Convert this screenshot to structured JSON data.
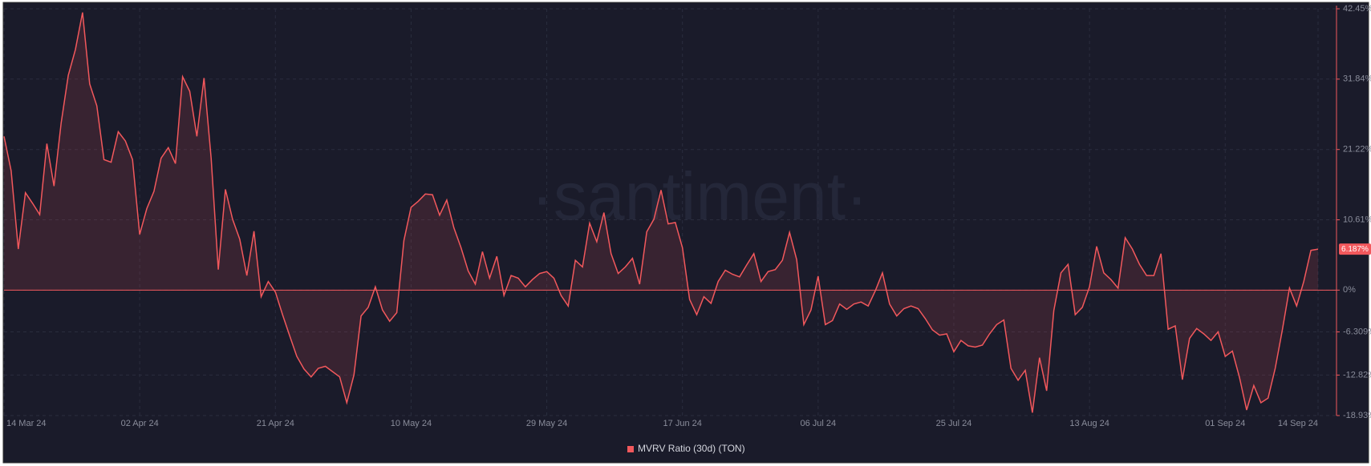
{
  "chart_data": {
    "type": "line",
    "watermark": "·santiment·",
    "categories": [
      "14 Mar 24",
      null,
      null,
      null,
      null,
      null,
      null,
      null,
      null,
      null,
      null,
      null,
      null,
      null,
      null,
      null,
      null,
      null,
      null,
      "02 Apr 24",
      null,
      null,
      null,
      null,
      null,
      null,
      null,
      null,
      null,
      null,
      null,
      null,
      null,
      null,
      null,
      null,
      null,
      null,
      "21 Apr 24",
      null,
      null,
      null,
      null,
      null,
      null,
      null,
      null,
      null,
      null,
      null,
      null,
      null,
      null,
      null,
      null,
      null,
      null,
      "10 May 24",
      null,
      null,
      null,
      null,
      null,
      null,
      null,
      null,
      null,
      null,
      null,
      null,
      null,
      null,
      null,
      null,
      null,
      null,
      "29 May 24",
      null,
      null,
      null,
      null,
      null,
      null,
      null,
      null,
      null,
      null,
      null,
      null,
      null,
      null,
      null,
      null,
      null,
      null,
      "17 Jun 24",
      null,
      null,
      null,
      null,
      null,
      null,
      null,
      null,
      null,
      null,
      null,
      null,
      null,
      null,
      null,
      null,
      null,
      null,
      "06 Jul 24",
      null,
      null,
      null,
      null,
      null,
      null,
      null,
      null,
      null,
      null,
      null,
      null,
      null,
      null,
      null,
      null,
      null,
      null,
      "25 Jul 24",
      null,
      null,
      null,
      null,
      null,
      null,
      null,
      null,
      null,
      null,
      null,
      null,
      null,
      null,
      null,
      null,
      null,
      null,
      "13 Aug 24",
      null,
      null,
      null,
      null,
      null,
      null,
      null,
      null,
      null,
      null,
      null,
      null,
      null,
      null,
      null,
      null,
      null,
      null,
      "01 Sep 24",
      null,
      null,
      null,
      null,
      null,
      null,
      null,
      null,
      null,
      null,
      null,
      null,
      "14 Sep 24"
    ],
    "series": [
      {
        "name": "MVRV Ratio (30d) (TON)",
        "color": "#f2585c",
        "last_value_label": "6.187%",
        "values": [
          23.2,
          18.0,
          6.2,
          14.7,
          13.1,
          11.4,
          22.1,
          15.7,
          25.2,
          32.4,
          36.3,
          41.9,
          31.1,
          27.8,
          19.7,
          19.3,
          23.9,
          22.5,
          19.7,
          8.4,
          12.3,
          14.9,
          19.9,
          21.5,
          19.1,
          32.2,
          30.0,
          23.2,
          32.0,
          19.9,
          3.1,
          15.2,
          10.7,
          7.7,
          2.2,
          8.9,
          -1.0,
          1.3,
          -0.3,
          -3.7,
          -6.9,
          -10.0,
          -11.9,
          -13.1,
          -11.8,
          -11.5,
          -12.3,
          -13.1,
          -17.0,
          -12.8,
          -3.9,
          -2.6,
          0.5,
          -3.0,
          -4.7,
          -3.4,
          7.5,
          12.5,
          13.4,
          14.5,
          14.4,
          11.3,
          13.6,
          9.4,
          6.4,
          2.9,
          0.9,
          5.8,
          1.8,
          5.1,
          -0.8,
          2.2,
          1.8,
          0.5,
          1.6,
          2.5,
          2.8,
          1.8,
          -0.8,
          -2.4,
          4.5,
          3.5,
          10.1,
          7.3,
          11.7,
          5.5,
          2.5,
          3.5,
          4.8,
          0.9,
          8.8,
          10.7,
          15.1,
          10.0,
          10.2,
          6.4,
          -1.4,
          -3.7,
          -1.0,
          -2.0,
          1.3,
          3.0,
          2.4,
          2.0,
          3.8,
          5.5,
          1.3,
          2.8,
          3.1,
          4.5,
          8.7,
          4.6,
          -5.2,
          -3.0,
          2.1,
          -5.2,
          -4.6,
          -2.1,
          -2.9,
          -2.1,
          -1.8,
          -2.4,
          -0.1,
          2.6,
          -2.1,
          -3.9,
          -2.8,
          -2.4,
          -2.8,
          -4.3,
          -6.0,
          -6.8,
          -6.6,
          -9.3,
          -7.6,
          -8.4,
          -8.6,
          -8.3,
          -6.6,
          -5.2,
          -4.5,
          -11.8,
          -13.6,
          -12.1,
          -18.5,
          -10.2,
          -15.2,
          -3.1,
          2.6,
          3.9,
          -3.7,
          -2.6,
          0.5,
          6.6,
          2.6,
          1.6,
          0.3,
          7.9,
          6.2,
          3.9,
          2.2,
          2.2,
          5.5,
          -5.9,
          -5.4,
          -13.5,
          -7.3,
          -5.8,
          -6.6,
          -7.6,
          -6.3,
          -10.0,
          -9.2,
          -13.2,
          -18.1,
          -14.4,
          -17.0,
          -16.3,
          -11.8,
          -6.0,
          0.3,
          -2.4,
          1.3,
          6.0,
          6.187
        ]
      }
    ],
    "ylim": [
      -18.93,
      42.45
    ],
    "yticks": [
      {
        "value": 42.45,
        "label": "42.45%"
      },
      {
        "value": 31.84,
        "label": "31.84%"
      },
      {
        "value": 21.22,
        "label": "21.22%"
      },
      {
        "value": 10.61,
        "label": "10.61%"
      },
      {
        "value": 0,
        "label": "0%"
      },
      {
        "value": -6.309,
        "label": "-6.309%"
      },
      {
        "value": -12.82,
        "label": "-12.82%"
      },
      {
        "value": -18.93,
        "label": "-18.93%"
      }
    ],
    "grid": true
  }
}
